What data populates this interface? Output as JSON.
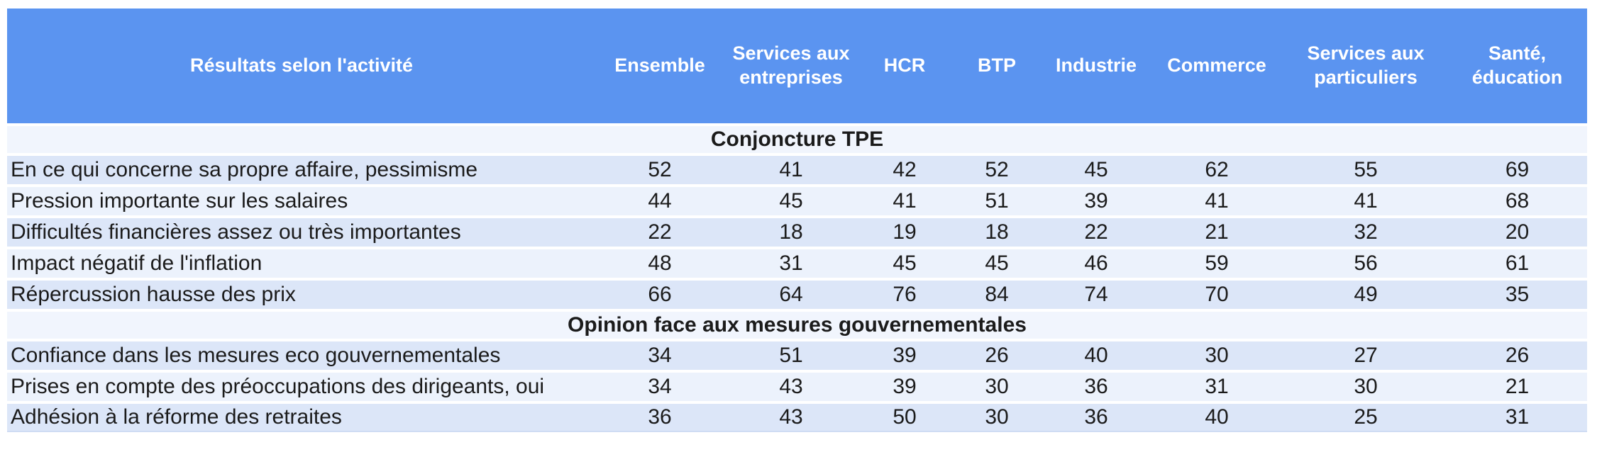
{
  "chart_data": {
    "type": "table",
    "title": "Résultats selon l'activité",
    "columns": [
      "Ensemble",
      "Services aux entreprises",
      "HCR",
      "BTP",
      "Industrie",
      "Commerce",
      "Services aux particuliers",
      "Santé, éducation"
    ],
    "sections": [
      {
        "title": "Conjoncture TPE",
        "rows": [
          {
            "label": "En ce qui concerne sa propre affaire, pessimisme",
            "values": [
              52,
              41,
              42,
              52,
              45,
              62,
              55,
              69
            ]
          },
          {
            "label": "Pression importante sur les salaires",
            "values": [
              44,
              45,
              41,
              51,
              39,
              41,
              41,
              68
            ]
          },
          {
            "label": "Difficultés financières assez ou très importantes",
            "values": [
              22,
              18,
              19,
              18,
              22,
              21,
              32,
              20
            ]
          },
          {
            "label": "Impact négatif de l'inflation",
            "values": [
              48,
              31,
              45,
              45,
              46,
              59,
              56,
              61
            ]
          },
          {
            "label": "Répercussion hausse des prix",
            "values": [
              66,
              64,
              76,
              84,
              74,
              70,
              49,
              35
            ]
          }
        ]
      },
      {
        "title": "Opinion face aux mesures gouvernementales",
        "rows": [
          {
            "label": "Confiance dans les mesures eco gouvernementales",
            "values": [
              34,
              51,
              39,
              26,
              40,
              30,
              27,
              26
            ]
          },
          {
            "label": "Prises en compte des préoccupations des dirigeants, oui",
            "values": [
              34,
              43,
              39,
              30,
              36,
              31,
              30,
              21
            ]
          },
          {
            "label": "Adhésion à la réforme des retraites",
            "values": [
              36,
              43,
              50,
              30,
              36,
              40,
              25,
              31
            ]
          }
        ]
      }
    ]
  },
  "colors": {
    "header_bg": "#5b94f0",
    "row_odd": "#dce6f8",
    "row_even": "#ecf2fc",
    "section_bg": "#f1f5fd",
    "header_text": "#ffffff",
    "body_text": "#1b1b1b"
  }
}
